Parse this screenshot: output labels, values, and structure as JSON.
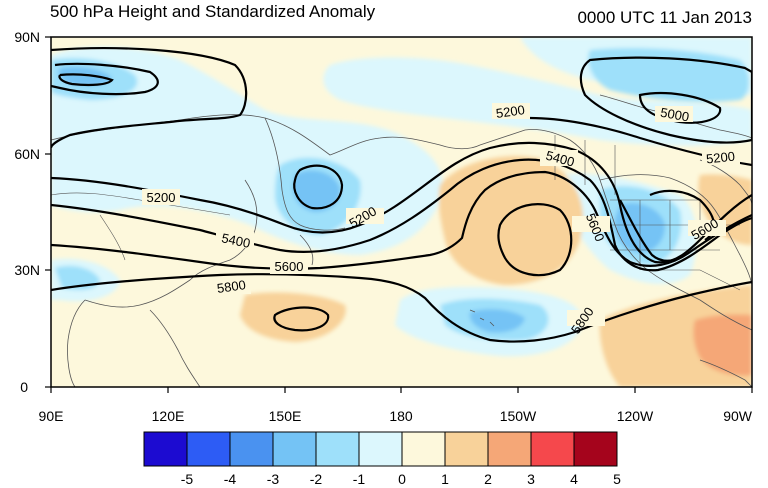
{
  "header": {
    "title": "500 hPa Height and Standardized Anomaly",
    "timestamp": "0000 UTC 11 Jan 2013"
  },
  "map": {
    "lat_ticks": [
      "90N",
      "60N",
      "30N",
      "0"
    ],
    "lon_ticks": [
      "90E",
      "120E",
      "150E",
      "180",
      "150W",
      "120W",
      "90W"
    ],
    "contour_labels": [
      "5200",
      "5000",
      "5200",
      "5200",
      "5400",
      "5200",
      "5400",
      "5600",
      "5600",
      "5600",
      "5800",
      "5800"
    ],
    "background_color": "#fdf8dc"
  },
  "colorbar": {
    "labels": [
      "-5",
      "-4",
      "-3",
      "-2",
      "-1",
      "0",
      "1",
      "2",
      "3",
      "4",
      "5"
    ],
    "colors": [
      "#1c0bd1",
      "#2d5cf5",
      "#4a92f0",
      "#74c3f5",
      "#9ee0fa",
      "#dcf7fd",
      "#fdf8dc",
      "#f8d29a",
      "#f5a777",
      "#f5484c",
      "#a5041c"
    ]
  }
}
